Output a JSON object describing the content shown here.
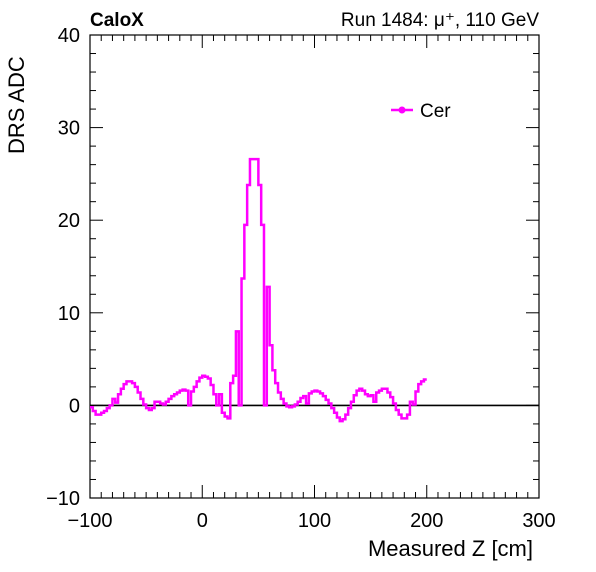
{
  "header": {
    "experiment": "CaloX",
    "run_info": "Run 1484:   μ⁺, 110 GeV"
  },
  "chart_data": {
    "type": "line",
    "xlabel": "Measured Z [cm]",
    "ylabel": "DRS ADC",
    "xlim": [
      -100,
      300
    ],
    "ylim": [
      -10,
      40
    ],
    "x_ticks": [
      -100,
      0,
      100,
      200,
      300
    ],
    "x_tick_labels": [
      "−100",
      "0",
      "100",
      "200",
      "300"
    ],
    "y_ticks": [
      -10,
      0,
      10,
      20,
      30,
      40
    ],
    "y_tick_labels": [
      "−10",
      "0",
      "10",
      "20",
      "30",
      "40"
    ],
    "legend_position": "top-right",
    "zero_line": true,
    "series": [
      {
        "name": "Cer",
        "color": "#ff00ff",
        "style": "step",
        "x_start": -100,
        "bin_width": 2.5,
        "values": [
          -0.2,
          -0.6,
          -1.0,
          -1.0,
          -0.8,
          -0.6,
          -0.3,
          0.0,
          0.7,
          0.3,
          1.2,
          1.8,
          2.3,
          2.6,
          2.6,
          2.4,
          2.0,
          1.4,
          0.7,
          0.1,
          -0.3,
          -0.5,
          -0.3,
          0.4,
          0.4,
          0.2,
          0.1,
          0.4,
          0.7,
          1.0,
          1.2,
          1.4,
          1.6,
          1.7,
          1.6,
          0.0,
          1.5,
          2.0,
          2.6,
          3.0,
          3.2,
          3.1,
          2.9,
          2.2,
          1.2,
          0.0,
          1.2,
          -0.8,
          -1.2,
          -1.4,
          2.4,
          3.2,
          8.0,
          0.0,
          13.7,
          19.5,
          23.8,
          26.6,
          26.6,
          26.6,
          23.8,
          19.5,
          0.0,
          12.8,
          6.5,
          3.8,
          2.4,
          1.4,
          0.7,
          0.2,
          -0.1,
          -0.2,
          -0.1,
          0.1,
          0.4,
          0.8,
          1.0,
          0.2,
          1.3,
          1.5,
          1.6,
          1.5,
          1.3,
          1.0,
          0.6,
          0.2,
          -0.3,
          -0.8,
          -1.3,
          -1.7,
          -1.5,
          -1.0,
          -0.3,
          0.4,
          1.1,
          1.6,
          1.8,
          1.6,
          1.2,
          1.0,
          1.1,
          0.4,
          1.4,
          1.6,
          1.8,
          1.8,
          1.4,
          0.9,
          0.2,
          -0.5,
          -1.0,
          -1.4,
          -1.4,
          -1.0,
          0.4,
          0.1,
          1.5,
          2.3,
          2.6,
          2.8
        ]
      }
    ]
  }
}
